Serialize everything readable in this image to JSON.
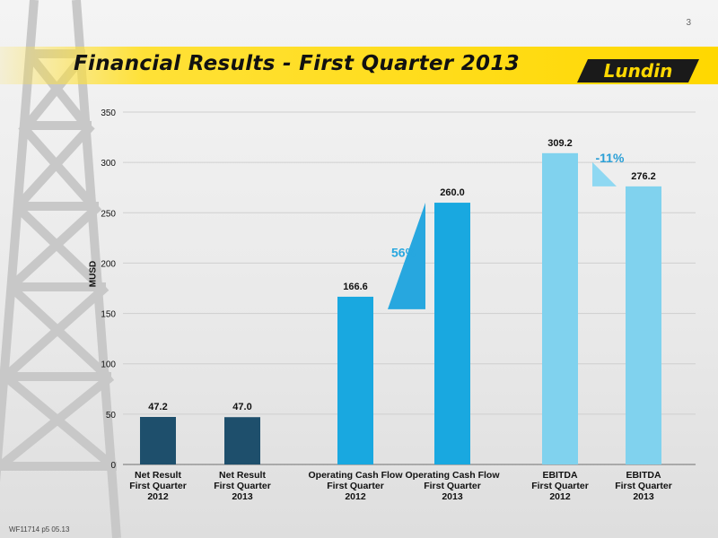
{
  "page": {
    "number": "3",
    "title": "Financial Results - First Quarter 2013",
    "logo_text": "Lundin",
    "footer_code": "WF11714 p5 05.13"
  },
  "chart_data": {
    "type": "bar",
    "ylabel": "MUSD",
    "ylim": [
      0,
      350
    ],
    "yticks": [
      0,
      50,
      100,
      150,
      200,
      250,
      300,
      350
    ],
    "categories": [
      [
        "Net Result",
        "First Quarter",
        "2012"
      ],
      [
        "Net Result",
        "First Quarter",
        "2013"
      ],
      [
        "Operating Cash Flow",
        "First Quarter",
        "2012"
      ],
      [
        "Operating Cash Flow",
        "First Quarter",
        "2013"
      ],
      [
        "EBITDA",
        "First Quarter",
        "2012"
      ],
      [
        "EBITDA",
        "First Quarter",
        "2013"
      ]
    ],
    "values": [
      47.2,
      47.0,
      166.6,
      260.0,
      309.2,
      276.2
    ],
    "value_labels": [
      "47.2",
      "47.0",
      "166.6",
      "260.0",
      "309.2",
      "276.2"
    ],
    "colors": [
      "#1e4f6c",
      "#1e4f6c",
      "#19a8e0",
      "#19a8e0",
      "#80d2ee",
      "#80d2ee"
    ],
    "annotations": [
      {
        "text": "56%",
        "from_index": 2,
        "to_index": 3,
        "direction": "up",
        "color": "#27a7df"
      },
      {
        "text": "-11%",
        "from_index": 4,
        "to_index": 5,
        "direction": "down",
        "color": "#8fd8f2"
      }
    ],
    "grid": true
  },
  "colors": {
    "title_band": "#ffd800",
    "logo_bg": "#1a1a1a",
    "text_dark": "#111111",
    "annotation_up": "#27a7df",
    "annotation_down": "#2a9fd6"
  }
}
